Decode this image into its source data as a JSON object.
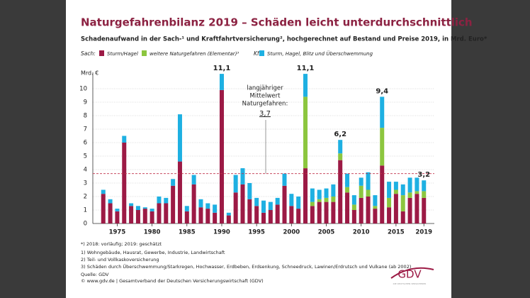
{
  "title": "Naturgefahrenbilanz 2019 – Schäden leicht unterdurchschnittlich",
  "subtitle": "Schadenaufwand in der Sach-¹ und Kraftfahrtversicherung², hochgerechnet auf Bestand und Preise 2019, in Mrd. Euro*",
  "chart_data": {
    "type": "bar",
    "stacked": true,
    "grid": true,
    "y_label": "Mrd. €",
    "legend_group_labels": [
      "Sach:",
      "Kfz:"
    ],
    "x": [
      1973,
      1974,
      1975,
      1976,
      1977,
      1978,
      1979,
      1980,
      1981,
      1982,
      1983,
      1984,
      1985,
      1986,
      1987,
      1988,
      1989,
      1990,
      1991,
      1992,
      1993,
      1994,
      1995,
      1996,
      1997,
      1998,
      1999,
      2000,
      2001,
      2002,
      2003,
      2004,
      2005,
      2006,
      2007,
      2008,
      2009,
      2010,
      2011,
      2012,
      2013,
      2014,
      2015,
      2016,
      2017,
      2018,
      2019
    ],
    "series": [
      {
        "name": "Sturm/Hagel",
        "color": "#9c1a45",
        "values": [
          2.2,
          1.5,
          0.9,
          6.0,
          1.3,
          1.0,
          1.1,
          0.9,
          1.5,
          1.5,
          2.8,
          4.6,
          0.9,
          2.9,
          1.2,
          1.1,
          0.8,
          9.9,
          0.6,
          2.3,
          2.9,
          1.8,
          1.3,
          0.8,
          1.0,
          1.4,
          2.8,
          1.3,
          1.1,
          4.1,
          1.3,
          1.6,
          1.6,
          1.6,
          4.7,
          2.3,
          1.0,
          1.9,
          2.0,
          1.1,
          4.3,
          1.2,
          2.2,
          0.9,
          1.9,
          2.2,
          1.9
        ]
      },
      {
        "name": "weitere Naturgefahren (Elementar)³",
        "color": "#8cc63f",
        "values": [
          null,
          null,
          null,
          null,
          null,
          null,
          null,
          null,
          null,
          null,
          null,
          null,
          null,
          null,
          null,
          null,
          null,
          null,
          null,
          null,
          null,
          null,
          null,
          null,
          null,
          null,
          null,
          null,
          null,
          5.3,
          0.3,
          0.2,
          0.3,
          0.4,
          0.5,
          0.4,
          0.4,
          0.9,
          0.5,
          0.2,
          2.8,
          0.7,
          0.3,
          1.2,
          0.4,
          0.2,
          0.5
        ]
      },
      {
        "name": "Sturm, Hagel, Blitz und Überschwemmung",
        "color": "#1eb0e2",
        "values": [
          0.3,
          0.3,
          0.2,
          0.5,
          0.2,
          0.3,
          0.1,
          0.2,
          0.5,
          0.4,
          0.5,
          3.5,
          0.4,
          0.7,
          0.6,
          0.4,
          0.6,
          1.2,
          0.2,
          1.3,
          1.2,
          1.2,
          0.6,
          0.9,
          0.6,
          0.5,
          0.9,
          0.9,
          0.9,
          1.7,
          1.0,
          0.7,
          0.7,
          0.9,
          1.0,
          1.0,
          0.7,
          0.6,
          1.3,
          0.8,
          2.3,
          1.2,
          0.6,
          0.8,
          1.1,
          1.0,
          0.8
        ]
      }
    ],
    "total_labels": [
      {
        "x": 1990,
        "value": 11.1,
        "label": "11,1"
      },
      {
        "x": 2002,
        "value": 11.1,
        "label": "11,1"
      },
      {
        "x": 2007,
        "value": 6.2,
        "label": "6,2"
      },
      {
        "x": 2013,
        "value": 9.4,
        "label": "9,4"
      },
      {
        "x": 2019,
        "value": 3.2,
        "label": "3,2"
      }
    ],
    "mean": {
      "value": 3.7,
      "label": "3,7",
      "text": [
        "langjähriger",
        "Mittelwert",
        "Naturgefahren:"
      ]
    },
    "xlim": [
      1971.5,
      2020.5
    ],
    "xticks": [
      1975,
      1980,
      1985,
      1990,
      1995,
      2000,
      2005,
      2010,
      2015,
      2019
    ],
    "ylim": [
      0,
      11
    ],
    "yticks": [
      0,
      1,
      2,
      3,
      4,
      5,
      6,
      7,
      8,
      9,
      10
    ]
  },
  "footnotes": [
    "*) 2018: vorläufig; 2019: geschätzt",
    "1)  Wohngebäude, Hausrat, Gewerbe, Industrie, Landwirtschaft",
    "2)  Teil- und Vollkaskoversicherung",
    "3)  Schäden durch Überschwemmung/Starkregen, Hochwasser, Erdbeben, Erdsenkung, Schneedruck, Lawinen/Erdrutsch und Vulkane (ab 2002)"
  ],
  "source": "Quelle: GDV",
  "copyright": "© www.gdv.de | Gesamtverband der Deutschen Versicherungswirtschaft (GDV)",
  "logo": {
    "text": "GDV",
    "tagline": "DIE DEUTSCHEN VERSICHERER"
  }
}
